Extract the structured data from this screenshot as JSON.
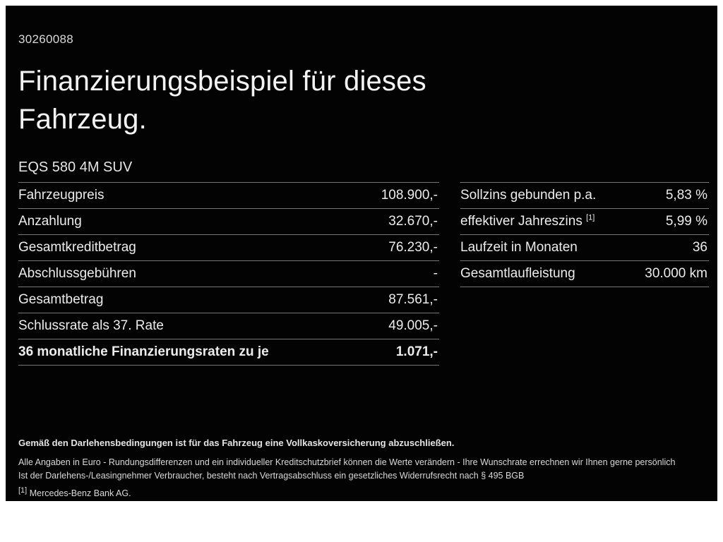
{
  "page": {
    "id_number": "30260088",
    "title_line1": "Finanzierungsbeispiel für dieses",
    "title_line2": "Fahrzeug.",
    "vehicle": "EQS 580 4M SUV"
  },
  "left_table": {
    "rows": [
      {
        "label": "Fahrzeugpreis",
        "value": "108.900,-"
      },
      {
        "label": "Anzahlung",
        "value": "32.670,-"
      },
      {
        "label": "Gesamtkreditbetrag",
        "value": "76.230,-"
      },
      {
        "label": "Abschlussgebühren",
        "value": "-"
      },
      {
        "label": "Gesamtbetrag",
        "value": "87.561,-"
      },
      {
        "label": "Schlussrate als 37. Rate",
        "value": "49.005,-"
      },
      {
        "label": "36 monatliche Finanzierungsraten zu je",
        "value": "1.071,-"
      }
    ]
  },
  "right_table": {
    "rows": [
      {
        "label": "Sollzins gebunden p.a.",
        "sup": "",
        "value": "5,83 %"
      },
      {
        "label": "effektiver Jahreszins",
        "sup": "[1]",
        "value": "5,99 %"
      },
      {
        "label": "Laufzeit in Monaten",
        "sup": "",
        "value": "36"
      },
      {
        "label": "Gesamtlaufleistung",
        "sup": "",
        "value": "30.000 km"
      }
    ]
  },
  "footer": {
    "line1": "Gemäß den Darlehensbedingungen ist für das Fahrzeug eine Vollkaskoversicherung abzuschließen.",
    "line2": "Alle Angaben in Euro - Rundungsdifferenzen und ein individueller Kreditschutzbrief können die Werte verändern - Ihre Wunschrate errechnen wir Ihnen gerne persönlich",
    "line3": "Ist der Darlehens-/Leasingnehmer Verbraucher, besteht nach Vertragsabschluss ein gesetzliches Widerrufsrecht nach § 495 BGB",
    "footnote_marker": "[1]",
    "footnote_text": "Mercedes-Benz Bank AG."
  }
}
